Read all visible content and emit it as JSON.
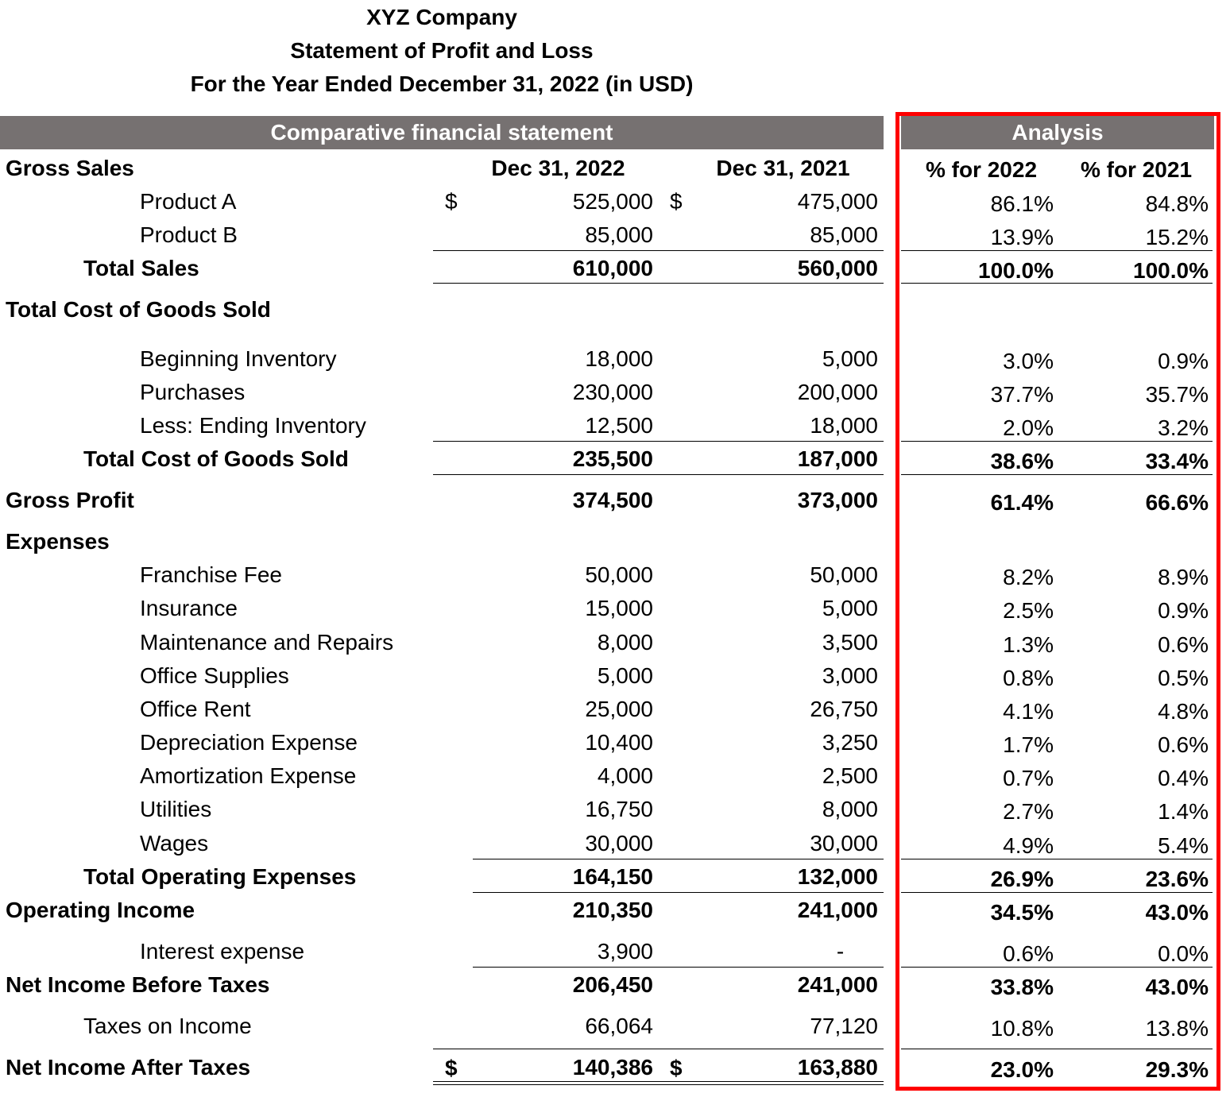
{
  "header": {
    "company": "XYZ Company",
    "statement": "Statement of Profit and Loss",
    "period": "For the Year Ended December 31, 2022 (in USD)"
  },
  "bars": {
    "comparative": "Comparative financial statement",
    "analysis": "Analysis"
  },
  "columns": {
    "col2022": "Dec 31, 2022",
    "col2021": "Dec 31, 2021",
    "pct2022": "% for 2022",
    "pct2021": "% for 2021",
    "currency": "$"
  },
  "accent": {
    "highlight_border": "#ff0000",
    "header_fill": "#767171"
  },
  "rows": [
    {
      "label": "Gross Sales",
      "v22": "",
      "v21": "",
      "p22": "",
      "p21": ""
    },
    {
      "label": "Product A",
      "v22": "525,000",
      "v21": "475,000",
      "p22": "86.1%",
      "p21": "84.8%"
    },
    {
      "label": "Product B",
      "v22": "85,000",
      "v21": "85,000",
      "p22": "13.9%",
      "p21": "15.2%"
    },
    {
      "label": "Total Sales",
      "v22": "610,000",
      "v21": "560,000",
      "p22": "100.0%",
      "p21": "100.0%"
    },
    {
      "label": "Total Cost of Goods Sold",
      "v22": "",
      "v21": "",
      "p22": "",
      "p21": ""
    },
    {
      "label": "Beginning Inventory",
      "v22": "18,000",
      "v21": "5,000",
      "p22": "3.0%",
      "p21": "0.9%"
    },
    {
      "label": "Purchases",
      "v22": "230,000",
      "v21": "200,000",
      "p22": "37.7%",
      "p21": "35.7%"
    },
    {
      "label": "Less: Ending Inventory",
      "v22": "12,500",
      "v21": "18,000",
      "p22": "2.0%",
      "p21": "3.2%"
    },
    {
      "label": "Total Cost of Goods Sold",
      "v22": "235,500",
      "v21": "187,000",
      "p22": "38.6%",
      "p21": "33.4%"
    },
    {
      "label": "Gross Profit",
      "v22": "374,500",
      "v21": "373,000",
      "p22": "61.4%",
      "p21": "66.6%"
    },
    {
      "label": "Expenses",
      "v22": "",
      "v21": "",
      "p22": "",
      "p21": ""
    },
    {
      "label": "Franchise Fee",
      "v22": "50,000",
      "v21": "50,000",
      "p22": "8.2%",
      "p21": "8.9%"
    },
    {
      "label": "Insurance",
      "v22": "15,000",
      "v21": "5,000",
      "p22": "2.5%",
      "p21": "0.9%"
    },
    {
      "label": "Maintenance and Repairs",
      "v22": "8,000",
      "v21": "3,500",
      "p22": "1.3%",
      "p21": "0.6%"
    },
    {
      "label": "Office Supplies",
      "v22": "5,000",
      "v21": "3,000",
      "p22": "0.8%",
      "p21": "0.5%"
    },
    {
      "label": "Office Rent",
      "v22": "25,000",
      "v21": "26,750",
      "p22": "4.1%",
      "p21": "4.8%"
    },
    {
      "label": "Depreciation Expense",
      "v22": "10,400",
      "v21": "3,250",
      "p22": "1.7%",
      "p21": "0.6%"
    },
    {
      "label": "Amortization Expense",
      "v22": "4,000",
      "v21": "2,500",
      "p22": "0.7%",
      "p21": "0.4%"
    },
    {
      "label": "Utilities",
      "v22": "16,750",
      "v21": "8,000",
      "p22": "2.7%",
      "p21": "1.4%"
    },
    {
      "label": "Wages",
      "v22": "30,000",
      "v21": "30,000",
      "p22": "4.9%",
      "p21": "5.4%"
    },
    {
      "label": "Total Operating Expenses",
      "v22": "164,150",
      "v21": "132,000",
      "p22": "26.9%",
      "p21": "23.6%"
    },
    {
      "label": "Operating Income",
      "v22": "210,350",
      "v21": "241,000",
      "p22": "34.5%",
      "p21": "43.0%"
    },
    {
      "label": "Interest expense",
      "v22": "3,900",
      "v21": "-",
      "p22": "0.6%",
      "p21": "0.0%"
    },
    {
      "label": "Net Income Before Taxes",
      "v22": "206,450",
      "v21": "241,000",
      "p22": "33.8%",
      "p21": "43.0%"
    },
    {
      "label": "Taxes on Income",
      "v22": "66,064",
      "v21": "77,120",
      "p22": "10.8%",
      "p21": "13.8%"
    },
    {
      "label": "Net Income After Taxes",
      "v22": "140,386",
      "v21": "163,880",
      "p22": "23.0%",
      "p21": "29.3%"
    }
  ]
}
